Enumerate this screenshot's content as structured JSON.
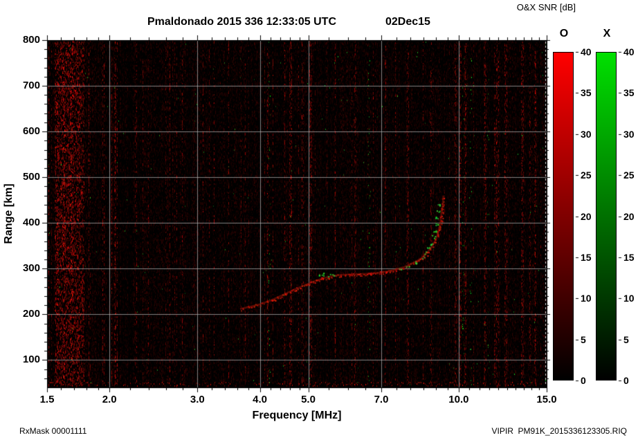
{
  "header": {
    "title": "Pmaldonado 2015 336 12:33:05 UTC",
    "date_label": "02Dec15",
    "colorbar_title": "O&X SNR [dB]"
  },
  "footer": {
    "rx_mask": "RxMask 00001111",
    "file_label": "VIPIR  PM91K_2015336123305.RIQ"
  },
  "chart_data": {
    "type": "heatmap",
    "subtype": "ionogram",
    "title": "Pmaldonado 2015 336 12:33:05 UTC  02Dec15",
    "xlabel": "Frequency [MHz]",
    "ylabel": "Range [km]",
    "x_scale": "log",
    "xlim": [
      1.5,
      15.0
    ],
    "ylim": [
      40,
      800
    ],
    "x_ticks": [
      1.5,
      2.0,
      3.0,
      4.0,
      5.0,
      7.0,
      10.0,
      15.0
    ],
    "x_tick_labels": [
      "1.5",
      "2.0",
      "3.0",
      "4.0",
      "5.0",
      "7.0",
      "10.0",
      "15.0"
    ],
    "x_minor_ticks": [
      1.6,
      1.7,
      1.8,
      1.9,
      2.2,
      2.4,
      2.6,
      2.8,
      3.2,
      3.4,
      3.6,
      3.8,
      4.2,
      4.4,
      4.6,
      4.8,
      5.5,
      6.0,
      6.5,
      7.5,
      8.0,
      8.5,
      9.0,
      9.5,
      10.5,
      11.0,
      11.5,
      12.0,
      12.5,
      13.0,
      13.5,
      14.0,
      14.5
    ],
    "y_ticks": [
      100,
      200,
      300,
      400,
      500,
      600,
      700,
      800
    ],
    "y_minor_step": 20,
    "grid": true,
    "background": "#000000",
    "grid_color": "rgba(185,185,185,0.7)",
    "colorbars": [
      {
        "label": "O",
        "min": 0,
        "max": 40,
        "ticks": [
          0,
          5,
          10,
          15,
          20,
          25,
          30,
          35,
          40
        ],
        "color_low": "#000000",
        "color_high": "#ff0000"
      },
      {
        "label": "X",
        "min": 0,
        "max": 40,
        "ticks": [
          0,
          5,
          10,
          15,
          20,
          25,
          30,
          35,
          40
        ],
        "color_low": "#000000",
        "color_high": "#00e000"
      }
    ],
    "o_trace_points": [
      [
        3.65,
        212
      ],
      [
        3.8,
        216
      ],
      [
        4.0,
        222
      ],
      [
        4.2,
        230
      ],
      [
        4.4,
        240
      ],
      [
        4.6,
        250
      ],
      [
        4.8,
        259
      ],
      [
        5.0,
        267
      ],
      [
        5.2,
        274
      ],
      [
        5.4,
        280
      ],
      [
        5.6,
        284
      ],
      [
        5.8,
        286
      ],
      [
        6.0,
        287
      ],
      [
        6.3,
        288
      ],
      [
        6.6,
        289
      ],
      [
        6.9,
        291
      ],
      [
        7.2,
        294
      ],
      [
        7.5,
        298
      ],
      [
        7.8,
        304
      ],
      [
        8.1,
        312
      ],
      [
        8.4,
        322
      ],
      [
        8.6,
        332
      ],
      [
        8.8,
        345
      ],
      [
        9.0,
        363
      ],
      [
        9.1,
        380
      ],
      [
        9.2,
        402
      ],
      [
        9.25,
        425
      ],
      [
        9.3,
        445
      ],
      [
        9.32,
        460
      ]
    ],
    "x_trace_specks": [
      [
        5.25,
        286
      ],
      [
        5.35,
        288
      ],
      [
        5.5,
        287
      ],
      [
        5.6,
        289
      ],
      [
        7.6,
        300
      ],
      [
        7.9,
        306
      ],
      [
        8.2,
        314
      ],
      [
        8.45,
        324
      ],
      [
        8.6,
        334
      ],
      [
        8.7,
        344
      ],
      [
        8.8,
        356
      ],
      [
        8.9,
        370
      ],
      [
        8.95,
        384
      ],
      [
        9.0,
        398
      ],
      [
        9.05,
        412
      ],
      [
        9.1,
        426
      ],
      [
        9.15,
        440
      ]
    ],
    "rfi_green_columns": [
      4.18,
      6.6,
      10.2,
      10.55,
      11.45
    ],
    "rfi_red_columns": [
      1.62,
      1.68,
      2.05,
      4.6,
      5.05,
      6.2,
      7.9,
      9.85,
      10.05,
      10.3,
      11.3,
      12.4,
      13.4,
      14.2
    ],
    "right_edge_marker": {
      "freq": 14.9,
      "style": "dashed",
      "color": "#dddddd"
    }
  }
}
